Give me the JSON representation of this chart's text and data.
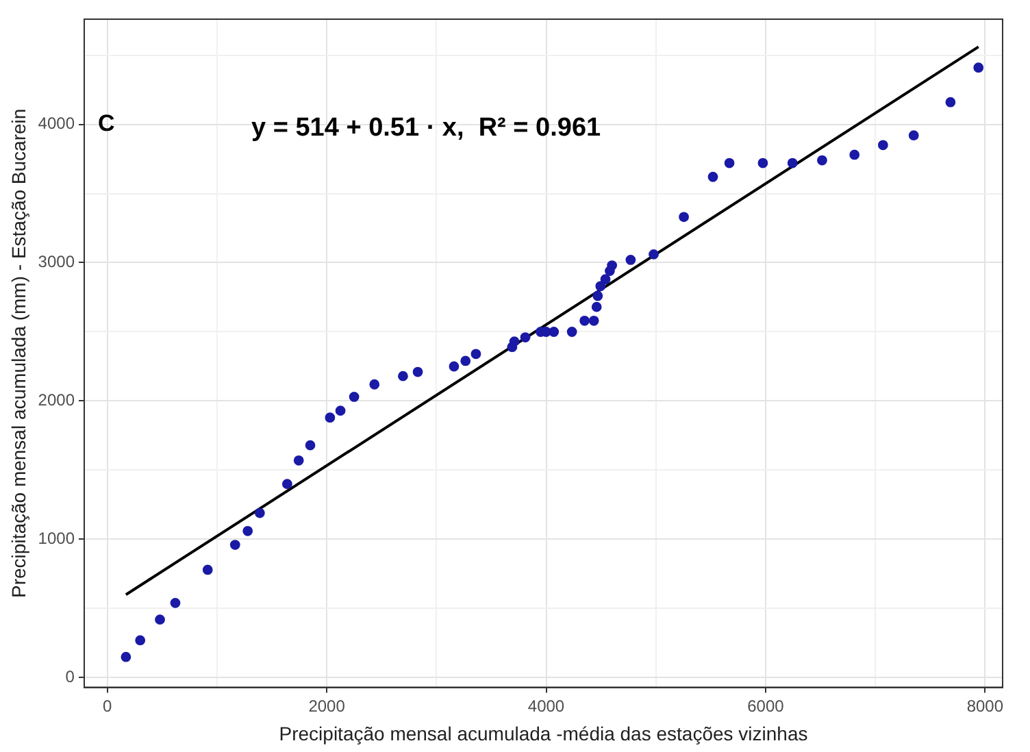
{
  "chart_data": {
    "type": "scatter",
    "xlabel": "Precipitação mensal acumulada -média das estações vizinhas",
    "ylabel": "Precipitação mensal acumulada (mm) - Estação Bucarein",
    "annotations": [
      "C",
      "y = 514 + 0.51 · x,  R² = 0.961"
    ],
    "xlim": [
      -210,
      8160
    ],
    "ylim": [
      -70,
      4760
    ],
    "xticks": [
      0,
      {
        "value": 1000,
        "label": null
      },
      2000,
      {
        "value": 3000,
        "label": null
      },
      4000,
      {
        "value": 5000,
        "label": null
      },
      6000,
      {
        "value": 7000,
        "label": null
      },
      8000
    ],
    "yticks": [
      0,
      {
        "value": 500,
        "label": null
      },
      1000,
      {
        "value": 1500,
        "label": null
      },
      2000,
      {
        "value": 2500,
        "label": null
      },
      3000,
      {
        "value": 3500,
        "label": null
      },
      4000,
      {
        "value": 4500,
        "label": null
      }
    ],
    "grid": true,
    "legend": false,
    "series": [
      {
        "color": "#1a1aa6",
        "marker": "circle",
        "x": [
          170,
          300,
          480,
          620,
          915,
          1165,
          1280,
          1390,
          1640,
          1745,
          1850,
          2030,
          2125,
          2250,
          2435,
          2695,
          2830,
          3160,
          3265,
          3360,
          3690,
          3710,
          3810,
          3950,
          4000,
          4070,
          4235,
          4350,
          4435,
          4460,
          4470,
          4495,
          4540,
          4580,
          4600,
          4770,
          4980,
          5255,
          5520,
          5670,
          5975,
          6245,
          6515,
          6810,
          7070,
          7350,
          7685,
          7940
        ],
        "values": [
          150,
          270,
          420,
          540,
          780,
          960,
          1060,
          1190,
          1400,
          1570,
          1680,
          1880,
          1930,
          2030,
          2120,
          2180,
          2210,
          2250,
          2290,
          2340,
          2390,
          2430,
          2460,
          2500,
          2500,
          2500,
          2500,
          2580,
          2580,
          2680,
          2760,
          2830,
          2880,
          2940,
          2980,
          3020,
          3060,
          3330,
          3620,
          3720,
          3720,
          3720,
          3740,
          3780,
          3850,
          3920,
          4160,
          4410
        ]
      },
      {
        "type": "line",
        "color": "#000000",
        "marker": "none",
        "line_style": "solid",
        "x": [
          170,
          7940
        ],
        "values": [
          600,
          4560
        ]
      }
    ]
  }
}
